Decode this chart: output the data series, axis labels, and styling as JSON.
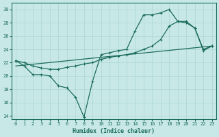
{
  "xlabel": "Humidex (Indice chaleur)",
  "bg_color": "#c8e8e8",
  "grid_color": "#b0d8d8",
  "line_color": "#1a6b5a",
  "xlim": [
    -0.5,
    23.5
  ],
  "ylim": [
    13.5,
    31
  ],
  "yticks": [
    14,
    16,
    18,
    20,
    22,
    24,
    26,
    28,
    30
  ],
  "xticks": [
    0,
    1,
    2,
    3,
    4,
    5,
    6,
    7,
    8,
    9,
    10,
    11,
    12,
    13,
    14,
    15,
    16,
    17,
    18,
    19,
    20,
    21,
    22,
    23
  ],
  "line1_x": [
    0,
    1,
    2,
    3,
    4,
    5,
    6,
    7,
    8,
    9,
    10,
    11,
    12,
    13,
    14,
    15,
    16,
    17,
    18,
    19,
    20,
    21,
    22,
    23
  ],
  "line1_y": [
    22.3,
    21.5,
    20.2,
    20.2,
    20.0,
    18.5,
    18.2,
    16.8,
    13.8,
    19.2,
    23.2,
    23.5,
    23.8,
    24.0,
    26.8,
    29.2,
    29.2,
    29.5,
    30.0,
    28.2,
    28.0,
    27.2,
    23.8,
    24.5
  ],
  "line2_x": [
    0,
    1,
    2,
    3,
    4,
    5,
    6,
    7,
    8,
    9,
    10,
    11,
    12,
    13,
    14,
    15,
    16,
    17,
    18,
    19,
    20,
    21,
    22,
    23
  ],
  "line2_y": [
    22.3,
    22.0,
    21.5,
    21.2,
    21.0,
    21.0,
    21.3,
    21.5,
    21.8,
    22.0,
    22.5,
    22.8,
    23.0,
    23.2,
    23.5,
    24.0,
    24.5,
    25.5,
    27.5,
    28.2,
    28.2,
    27.2,
    24.0,
    24.5
  ],
  "line3_x": [
    0,
    23
  ],
  "line3_y": [
    21.5,
    24.5
  ]
}
